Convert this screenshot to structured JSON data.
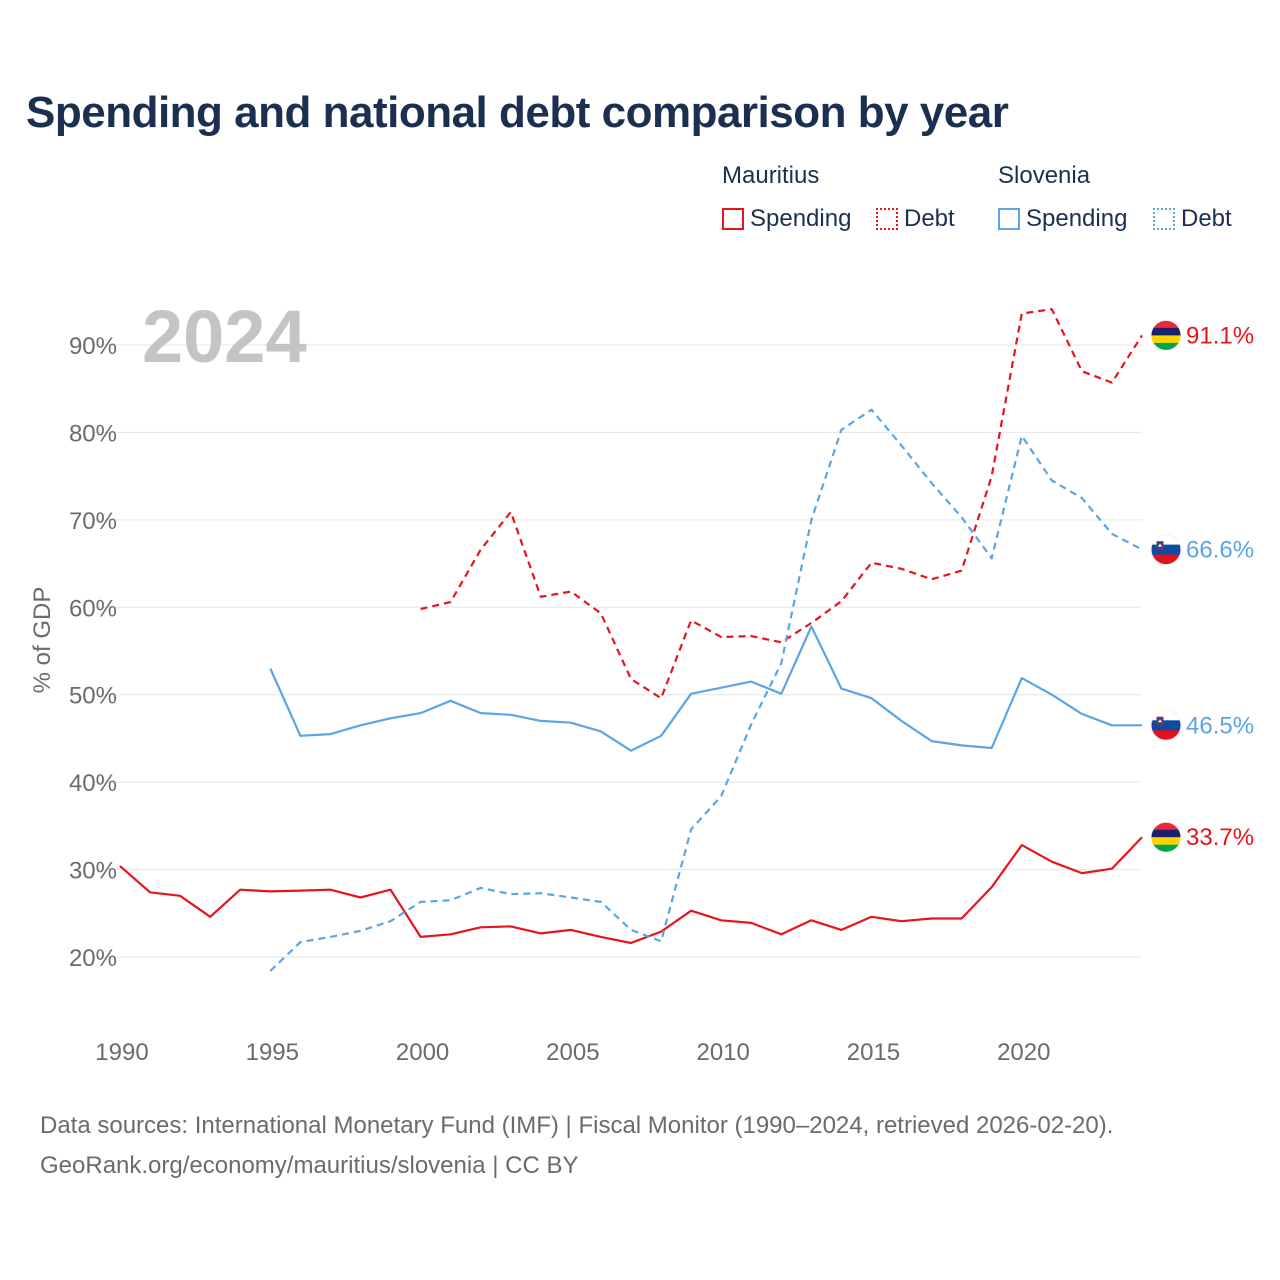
{
  "chart_data": {
    "type": "line",
    "title": "Spending and national debt comparison by year",
    "ylabel": "% of GDP",
    "xlabel": "",
    "year_overlay": "2024",
    "xlim": [
      1990,
      2024
    ],
    "ylim": [
      20,
      94
    ],
    "x_ticks": [
      1990,
      1995,
      2000,
      2005,
      2010,
      2015,
      2020
    ],
    "y_ticks": [
      20,
      30,
      40,
      50,
      60,
      70,
      80,
      90
    ],
    "y_tick_labels": [
      "20%",
      "30%",
      "40%",
      "50%",
      "60%",
      "70%",
      "80%",
      "90%"
    ],
    "legend": {
      "groups": [
        {
          "name": "Mauritius",
          "items": [
            {
              "label": "Spending",
              "color": "#e8141c",
              "style": "solid"
            },
            {
              "label": "Debt",
              "color": "#e8141c",
              "style": "dotted"
            }
          ]
        },
        {
          "name": "Slovenia",
          "items": [
            {
              "label": "Spending",
              "color": "#5ba4e5",
              "style": "solid"
            },
            {
              "label": "Debt",
              "color": "#5ba4e5",
              "style": "dotted"
            }
          ]
        }
      ]
    },
    "series": [
      {
        "name": "Mauritius Spending",
        "country": "Mauritius",
        "flag": "mauritius",
        "color": "#e8141c",
        "dash": false,
        "end_label": "33.7%",
        "points": [
          [
            1990,
            30.4
          ],
          [
            1991,
            27.4
          ],
          [
            1992,
            27.0
          ],
          [
            1993,
            24.6
          ],
          [
            1994,
            27.7
          ],
          [
            1995,
            27.5
          ],
          [
            1996,
            27.6
          ],
          [
            1997,
            27.7
          ],
          [
            1998,
            26.8
          ],
          [
            1999,
            27.7
          ],
          [
            2000,
            22.3
          ],
          [
            2001,
            22.6
          ],
          [
            2002,
            23.4
          ],
          [
            2003,
            23.5
          ],
          [
            2004,
            22.7
          ],
          [
            2005,
            23.1
          ],
          [
            2006,
            22.3
          ],
          [
            2007,
            21.6
          ],
          [
            2008,
            22.9
          ],
          [
            2009,
            25.3
          ],
          [
            2010,
            24.2
          ],
          [
            2011,
            23.9
          ],
          [
            2012,
            22.6
          ],
          [
            2013,
            24.2
          ],
          [
            2014,
            23.1
          ],
          [
            2015,
            24.6
          ],
          [
            2016,
            24.1
          ],
          [
            2017,
            24.4
          ],
          [
            2018,
            24.4
          ],
          [
            2019,
            28.0
          ],
          [
            2020,
            32.8
          ],
          [
            2021,
            30.9
          ],
          [
            2022,
            29.6
          ],
          [
            2023,
            30.1
          ],
          [
            2024,
            33.7
          ]
        ]
      },
      {
        "name": "Mauritius Debt",
        "country": "Mauritius",
        "flag": "mauritius",
        "color": "#e8141c",
        "dash": true,
        "end_label": "91.1%",
        "points": [
          [
            2000,
            59.8
          ],
          [
            2001,
            60.6
          ],
          [
            2002,
            66.6
          ],
          [
            2003,
            70.9
          ],
          [
            2004,
            61.2
          ],
          [
            2005,
            61.8
          ],
          [
            2006,
            59.3
          ],
          [
            2007,
            51.8
          ],
          [
            2008,
            49.6
          ],
          [
            2009,
            58.5
          ],
          [
            2010,
            56.6
          ],
          [
            2011,
            56.7
          ],
          [
            2012,
            56.0
          ],
          [
            2013,
            58.2
          ],
          [
            2014,
            60.7
          ],
          [
            2015,
            65.1
          ],
          [
            2016,
            64.4
          ],
          [
            2017,
            63.2
          ],
          [
            2018,
            64.2
          ],
          [
            2019,
            75.0
          ],
          [
            2020,
            93.6
          ],
          [
            2021,
            94.1
          ],
          [
            2022,
            87.0
          ],
          [
            2023,
            85.7
          ],
          [
            2024,
            91.1
          ]
        ]
      },
      {
        "name": "Slovenia Spending",
        "country": "Slovenia",
        "flag": "slovenia",
        "color": "#5ba4e5",
        "dash": false,
        "end_label": "46.5%",
        "points": [
          [
            1995,
            53.0
          ],
          [
            1996,
            45.3
          ],
          [
            1997,
            45.5
          ],
          [
            1998,
            46.5
          ],
          [
            1999,
            47.3
          ],
          [
            2000,
            47.9
          ],
          [
            2001,
            49.3
          ],
          [
            2002,
            47.9
          ],
          [
            2003,
            47.7
          ],
          [
            2004,
            47.0
          ],
          [
            2005,
            46.8
          ],
          [
            2006,
            45.8
          ],
          [
            2007,
            43.6
          ],
          [
            2008,
            45.3
          ],
          [
            2009,
            50.1
          ],
          [
            2010,
            50.8
          ],
          [
            2011,
            51.5
          ],
          [
            2012,
            50.1
          ],
          [
            2013,
            57.8
          ],
          [
            2014,
            50.7
          ],
          [
            2015,
            49.6
          ],
          [
            2016,
            47.0
          ],
          [
            2017,
            44.7
          ],
          [
            2018,
            44.2
          ],
          [
            2019,
            43.9
          ],
          [
            2020,
            51.9
          ],
          [
            2021,
            50.0
          ],
          [
            2022,
            47.8
          ],
          [
            2023,
            46.5
          ],
          [
            2024,
            46.5
          ]
        ]
      },
      {
        "name": "Slovenia Debt",
        "country": "Slovenia",
        "flag": "slovenia",
        "color": "#5ba4e5",
        "dash": true,
        "end_label": "66.6%",
        "points": [
          [
            1995,
            18.4
          ],
          [
            1996,
            21.7
          ],
          [
            1997,
            22.3
          ],
          [
            1998,
            23.0
          ],
          [
            1999,
            24.1
          ],
          [
            2000,
            26.3
          ],
          [
            2001,
            26.5
          ],
          [
            2002,
            27.9
          ],
          [
            2003,
            27.2
          ],
          [
            2004,
            27.3
          ],
          [
            2005,
            26.8
          ],
          [
            2006,
            26.3
          ],
          [
            2007,
            23.1
          ],
          [
            2008,
            21.8
          ],
          [
            2009,
            34.6
          ],
          [
            2010,
            38.4
          ],
          [
            2011,
            46.6
          ],
          [
            2012,
            53.6
          ],
          [
            2013,
            70.0
          ],
          [
            2014,
            80.3
          ],
          [
            2015,
            82.6
          ],
          [
            2016,
            78.5
          ],
          [
            2017,
            74.2
          ],
          [
            2018,
            70.3
          ],
          [
            2019,
            65.6
          ],
          [
            2020,
            79.6
          ],
          [
            2021,
            74.5
          ],
          [
            2022,
            72.5
          ],
          [
            2023,
            68.4
          ],
          [
            2024,
            66.6
          ]
        ]
      }
    ],
    "source_lines": [
      "Data sources: International Monetary Fund (IMF) | Fiscal Monitor (1990–2024, retrieved 2026-02-20).",
      "GeoRank.org/economy/mauritius/slovenia | CC BY"
    ]
  }
}
